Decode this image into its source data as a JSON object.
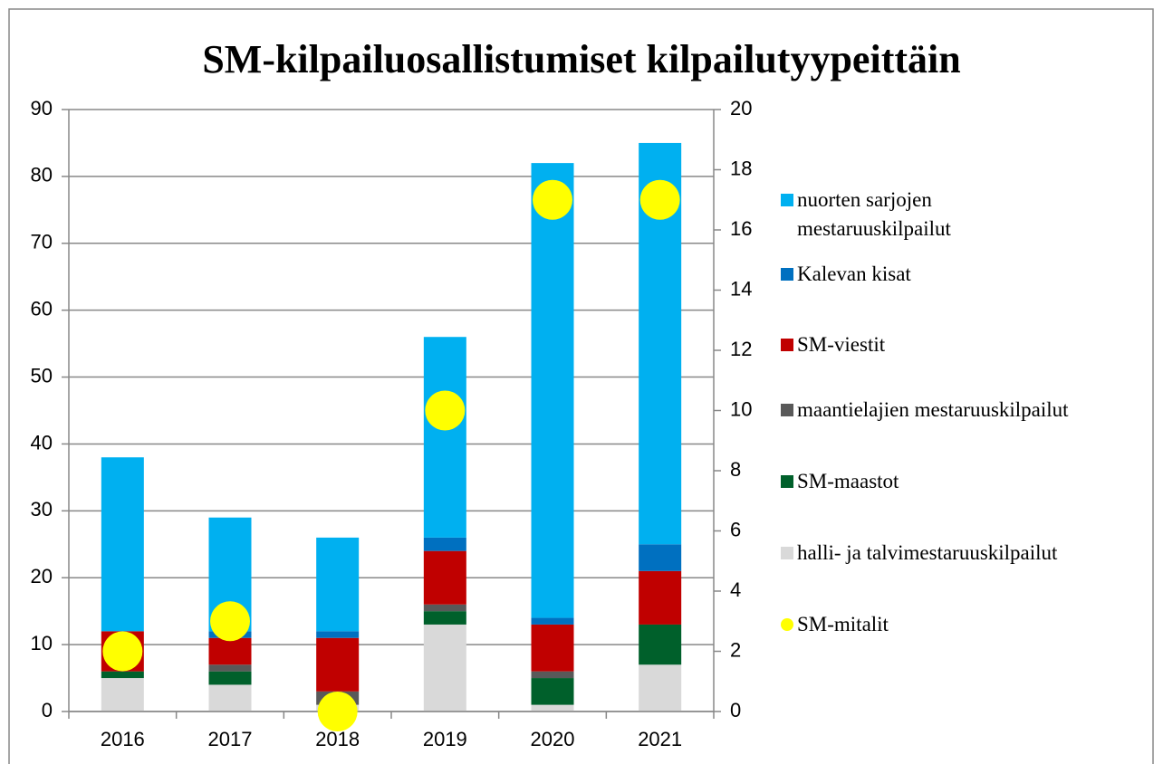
{
  "chart_data": {
    "type": "bar",
    "stacked": true,
    "title": "SM-kilpailuosallistumiset kilpailutyypeittäin",
    "categories": [
      "2016",
      "2017",
      "2018",
      "2019",
      "2020",
      "2021"
    ],
    "ylim": [
      0,
      90
    ],
    "yticks": [
      0,
      10,
      20,
      30,
      40,
      50,
      60,
      70,
      80,
      90
    ],
    "y2lim": [
      0,
      20
    ],
    "y2ticks": [
      0,
      2,
      4,
      6,
      8,
      10,
      12,
      14,
      16,
      18,
      20
    ],
    "grid": true,
    "legend": "right",
    "series": [
      {
        "name": "nuorten sarjojen mestaruuskilpailut",
        "color": "#00b0f0",
        "values": [
          26,
          17,
          14,
          30,
          68,
          60
        ]
      },
      {
        "name": "Kalevan kisat",
        "color": "#0070c0",
        "values": [
          0,
          1,
          1,
          2,
          1,
          4
        ]
      },
      {
        "name": "SM-viestit",
        "color": "#c00000",
        "values": [
          6,
          4,
          8,
          8,
          7,
          8
        ]
      },
      {
        "name": "maantielajien mestaruuskilpailut",
        "color": "#595959",
        "values": [
          0,
          1,
          2,
          1,
          1,
          0
        ]
      },
      {
        "name": "SM-maastot",
        "color": "#00602b",
        "values": [
          1,
          2,
          0,
          2,
          4,
          6
        ]
      },
      {
        "name": "halli- ja talvimestaruuskilpailut",
        "color": "#d9d9d9",
        "values": [
          5,
          4,
          1,
          13,
          1,
          7
        ]
      },
      {
        "name": "SM-mitalit",
        "color": "#ffff00",
        "type": "scatter",
        "axis": "y2",
        "values": [
          2,
          3,
          0,
          10,
          17,
          17
        ]
      }
    ]
  }
}
